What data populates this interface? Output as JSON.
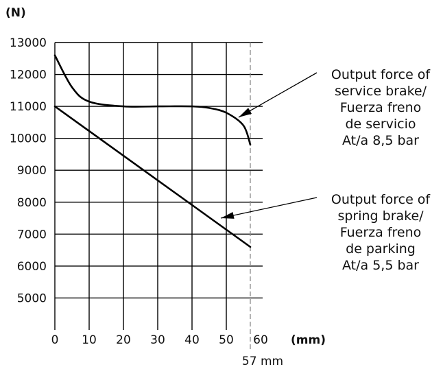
{
  "chart_data": {
    "type": "line",
    "title": "",
    "xlabel": "(mm)",
    "ylabel": "(N)",
    "xlim": [
      0,
      60
    ],
    "ylim": [
      4000,
      13000
    ],
    "grid": true,
    "x_ticks": [
      "0",
      "10",
      "20",
      "30",
      "40",
      "50",
      "60"
    ],
    "y_ticks": [
      "13000",
      "12000",
      "11000",
      "10000",
      "9000",
      "8000",
      "7000",
      "6000",
      "5000"
    ],
    "marker": {
      "x": 57,
      "label": "57 mm"
    },
    "series": [
      {
        "x": [
          0,
          5,
          10,
          20,
          30,
          40,
          45,
          50,
          55,
          57
        ],
        "values": [
          12600,
          11600,
          11150,
          11000,
          11000,
          11000,
          10950,
          10800,
          10400,
          9800
        ],
        "annotation": [
          "Output force of",
          "service brake/",
          "Fuerza freno",
          "de servicio",
          "At/a 8,5 bar"
        ]
      },
      {
        "x": [
          0,
          57
        ],
        "values": [
          11000,
          6600
        ],
        "annotation": [
          "Output force of",
          "spring brake/",
          "Fuerza freno",
          "de parking",
          "At/a 5,5 bar"
        ]
      }
    ]
  }
}
